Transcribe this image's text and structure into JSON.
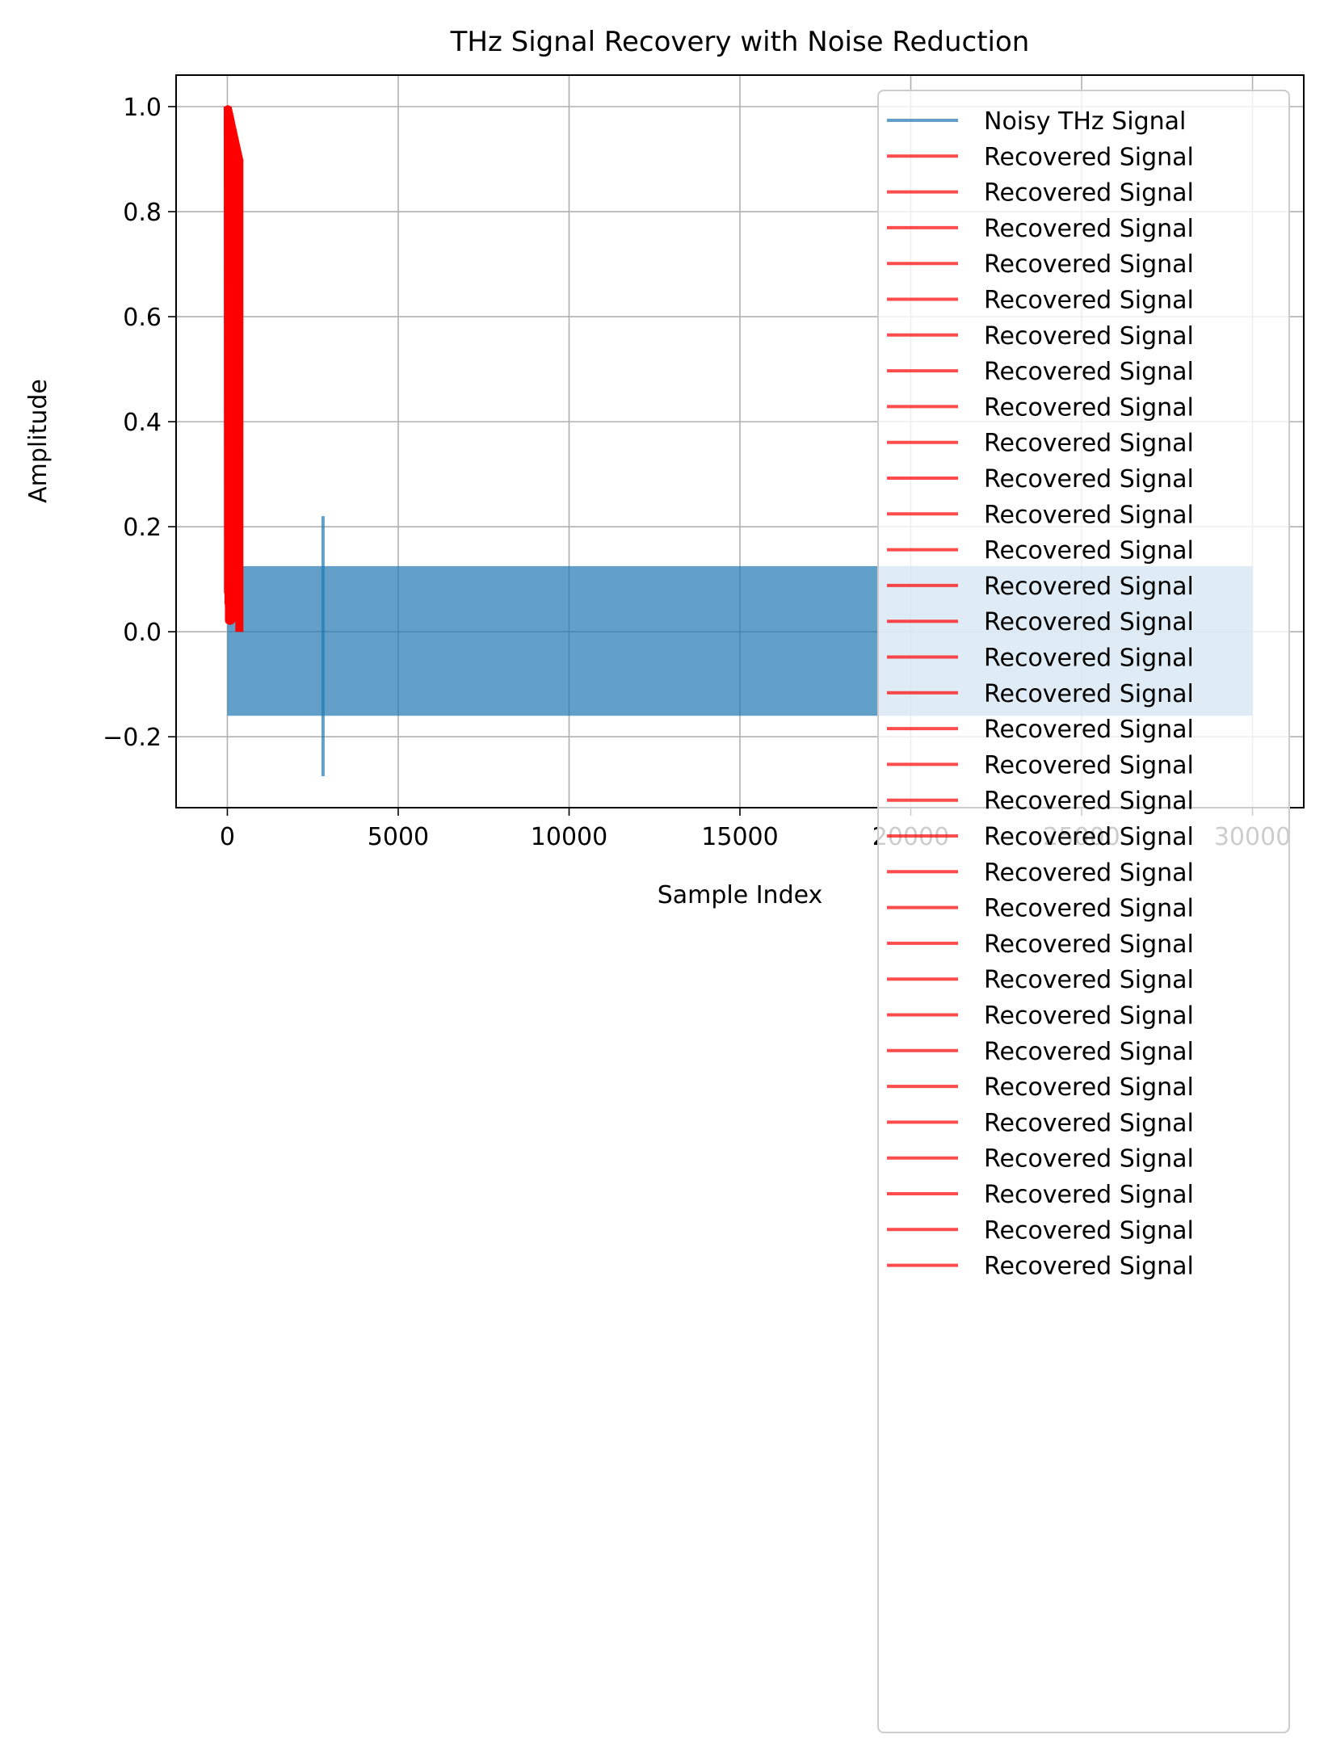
{
  "chart_data": {
    "type": "line",
    "title": "THz Signal Recovery with Noise Reduction",
    "xlabel": "Sample Index",
    "ylabel": "Amplitude",
    "xlim": [
      -1500,
      31500
    ],
    "ylim": [
      -0.335,
      1.06
    ],
    "xticks": [
      0,
      5000,
      10000,
      15000,
      20000,
      25000,
      30000
    ],
    "xtick_labels": [
      "0",
      "5000",
      "10000",
      "15000",
      "20000",
      "25000",
      "30000"
    ],
    "yticks": [
      -0.2,
      0.0,
      0.2,
      0.4,
      0.6,
      0.8,
      1.0
    ],
    "ytick_labels": [
      "−0.2",
      "0.0",
      "0.2",
      "0.4",
      "0.6",
      "0.8",
      "1.0"
    ],
    "grid": true,
    "legend_position": "upper right",
    "noisy_signal": {
      "name": "Noisy THz Signal",
      "color": "#1f77b4",
      "alpha": 0.7,
      "x_range": [
        0,
        30000
      ],
      "band_min": -0.16,
      "band_max": 0.125,
      "spike": {
        "x": 2800,
        "y_min": -0.275,
        "y_max": 0.22
      }
    },
    "recovered_signals": {
      "name": "Recovered Signal",
      "color": "#ff0000",
      "alpha": 0.7,
      "count": 32,
      "x_range": [
        0,
        340
      ],
      "y_min": 0.0,
      "y_max": 1.0
    }
  }
}
